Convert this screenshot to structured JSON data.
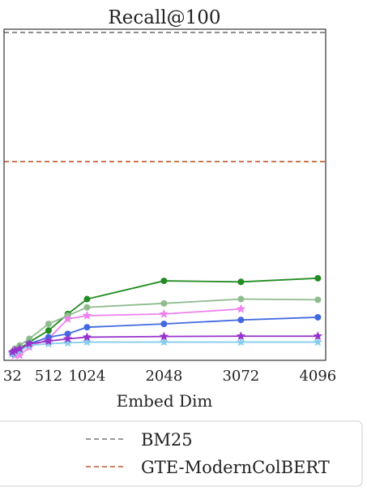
{
  "chart_data": {
    "type": "line",
    "title": "Recall@100",
    "xlabel": "Embed Dim",
    "ylabel": "",
    "xlim": [
      -80,
      4200
    ],
    "ylim": [
      0,
      1
    ],
    "x_ticks": [
      32,
      512,
      1024,
      2048,
      3072,
      4096
    ],
    "x_tick_labels": [
      "32",
      "512",
      "1024",
      "2048",
      "3072",
      "4096"
    ],
    "grid": false,
    "legend_placement": "bottom",
    "reference_lines": [
      {
        "name": "BM25",
        "value": 0.99,
        "color": "#777777",
        "dash": true
      },
      {
        "name": "GTE-ModernColBERT",
        "value": 0.6,
        "color": "#c0562e",
        "dash": true
      }
    ],
    "series": [
      {
        "color": "#228b22",
        "marker": "circle",
        "x": [
          32,
          64,
          128,
          256,
          512,
          768,
          1024,
          2048,
          3072,
          4096
        ],
        "values": [
          0.025,
          0.03,
          0.035,
          0.055,
          0.09,
          0.14,
          0.185,
          0.24,
          0.237,
          0.248
        ]
      },
      {
        "color": "#8fbc8f",
        "marker": "circle",
        "x": [
          32,
          64,
          128,
          256,
          512,
          768,
          1024,
          2048,
          3072,
          4096
        ],
        "values": [
          0.025,
          0.035,
          0.045,
          0.065,
          0.11,
          0.135,
          0.16,
          0.172,
          0.185,
          0.183
        ]
      },
      {
        "color": "#ee82ee",
        "marker": "star",
        "x": [
          32,
          64,
          128,
          256,
          512,
          768,
          1024,
          2048,
          3072
        ],
        "values": [
          0.02,
          0.015,
          0.015,
          0.04,
          0.065,
          0.125,
          0.135,
          0.14,
          0.155
        ]
      },
      {
        "color": "#4169e1",
        "marker": "circle",
        "x": [
          32,
          64,
          128,
          256,
          512,
          768,
          1024,
          2048,
          3072,
          4096
        ],
        "values": [
          0.02,
          0.025,
          0.032,
          0.05,
          0.07,
          0.08,
          0.1,
          0.11,
          0.122,
          0.13
        ]
      },
      {
        "color": "#87ceeb",
        "marker": "star",
        "x": [
          32,
          64,
          128,
          256,
          512,
          768,
          1024,
          2048,
          3072,
          4096
        ],
        "values": [
          0.02,
          0.025,
          0.03,
          0.045,
          0.05,
          0.053,
          0.055,
          0.055,
          0.055,
          0.055
        ]
      },
      {
        "color": "#9932cc",
        "marker": "star",
        "x": [
          32,
          64,
          128,
          256,
          512,
          768,
          1024,
          2048,
          3072,
          4096
        ],
        "values": [
          0.025,
          0.03,
          0.035,
          0.05,
          0.058,
          0.065,
          0.07,
          0.072,
          0.073,
          0.073
        ]
      }
    ]
  },
  "legend": {
    "items": [
      {
        "label": "BM25",
        "color": "#777777"
      },
      {
        "label": "GTE-ModernColBERT",
        "color": "#c0562e"
      }
    ]
  }
}
